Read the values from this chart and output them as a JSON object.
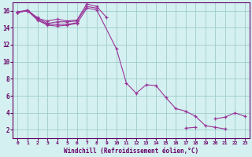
{
  "bg_color": "#d4f0f0",
  "grid_color": "#a0cccc",
  "line_color": "#993399",
  "xlabel": "Windchill (Refroidissement éolien,°C)",
  "xlim": [
    -0.5,
    23.5
  ],
  "ylim": [
    1,
    17
  ],
  "xticks": [
    0,
    1,
    2,
    3,
    4,
    5,
    6,
    7,
    8,
    9,
    10,
    11,
    12,
    13,
    14,
    15,
    16,
    17,
    18,
    19,
    20,
    21,
    22,
    23
  ],
  "yticks": [
    2,
    4,
    6,
    8,
    10,
    12,
    14,
    16
  ],
  "series": [
    {
      "x": [
        0,
        1,
        2,
        3,
        4,
        5,
        6,
        7,
        8,
        9
      ],
      "y": [
        15.8,
        16.1,
        15.1,
        14.8,
        15.0,
        14.8,
        14.9,
        16.8,
        16.5,
        15.2
      ]
    },
    {
      "x": [
        0,
        1,
        2,
        3,
        4,
        5,
        6,
        7,
        8
      ],
      "y": [
        15.9,
        16.0,
        15.2,
        14.5,
        14.7,
        14.7,
        14.8,
        16.5,
        16.3
      ]
    },
    {
      "x": [
        0,
        1,
        2,
        3,
        4,
        5,
        6
      ],
      "y": [
        15.8,
        16.0,
        15.0,
        14.4,
        14.4,
        14.4,
        14.6
      ]
    },
    {
      "x": [
        0,
        1,
        2,
        3,
        4,
        5,
        6,
        7,
        8,
        10,
        11,
        12,
        13,
        14,
        15,
        16,
        17,
        18,
        19,
        20,
        21
      ],
      "y": [
        15.8,
        16.0,
        14.9,
        14.3,
        14.2,
        14.3,
        14.5,
        16.3,
        16.1,
        11.5,
        7.5,
        6.3,
        7.3,
        7.2,
        5.8,
        4.5,
        4.2,
        3.6,
        2.5,
        2.3,
        2.1
      ]
    },
    {
      "x": [
        20,
        21,
        22,
        23
      ],
      "y": [
        3.3,
        3.5,
        4.0,
        3.6
      ]
    },
    {
      "x": [
        17,
        18
      ],
      "y": [
        2.2,
        2.3
      ]
    }
  ]
}
